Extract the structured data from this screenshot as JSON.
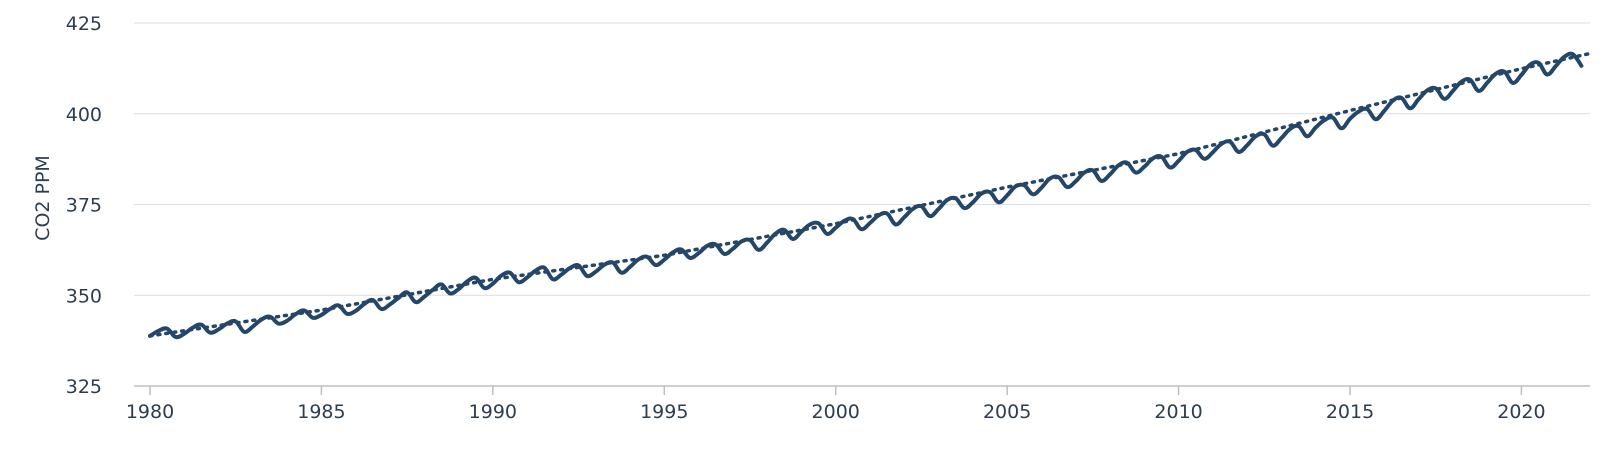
{
  "chart_data": {
    "type": "line",
    "title": "",
    "xlabel": "",
    "ylabel": "CO2 PPM",
    "xlim": [
      1980,
      2022
    ],
    "ylim": [
      325,
      425
    ],
    "x_ticks": [
      "1980",
      "1985",
      "1990",
      "1995",
      "2000",
      "2005",
      "2010",
      "2015",
      "2020"
    ],
    "y_ticks": [
      "325",
      "350",
      "375",
      "400",
      "425"
    ],
    "grid": "horizontal",
    "line_color": "#244669",
    "series": [
      {
        "style": "solid",
        "x": [
          1980.0,
          1980.25,
          1980.5,
          1980.75,
          1981.0,
          1981.25,
          1981.5,
          1981.75,
          1982.0,
          1982.25,
          1982.5,
          1982.75,
          1983.0,
          1983.25,
          1983.5,
          1983.75,
          1984.0,
          1984.25,
          1984.5,
          1984.75,
          1985.0,
          1985.25,
          1985.5,
          1985.75,
          1986.0,
          1986.25,
          1986.5,
          1986.75,
          1987.0,
          1987.25,
          1987.5,
          1987.75,
          1988.0,
          1988.25,
          1988.5,
          1988.75,
          1989.0,
          1989.25,
          1989.5,
          1989.75,
          1990.0,
          1990.25,
          1990.5,
          1990.75,
          1991.0,
          1991.25,
          1991.5,
          1991.75,
          1992.0,
          1992.25,
          1992.5,
          1992.75,
          1993.0,
          1993.25,
          1993.5,
          1993.75,
          1994.0,
          1994.25,
          1994.5,
          1994.75,
          1995.0,
          1995.25,
          1995.5,
          1995.75,
          1996.0,
          1996.25,
          1996.5,
          1996.75,
          1997.0,
          1997.25,
          1997.5,
          1997.75,
          1998.0,
          1998.25,
          1998.5,
          1998.75,
          1999.0,
          1999.25,
          1999.5,
          1999.75,
          2000.0,
          2000.25,
          2000.5,
          2000.75,
          2001.0,
          2001.25,
          2001.5,
          2001.75,
          2002.0,
          2002.25,
          2002.5,
          2002.75,
          2003.0,
          2003.25,
          2003.5,
          2003.75,
          2004.0,
          2004.25,
          2004.5,
          2004.75,
          2005.0,
          2005.25,
          2005.5,
          2005.75,
          2006.0,
          2006.25,
          2006.5,
          2006.75,
          2007.0,
          2007.25,
          2007.5,
          2007.75,
          2008.0,
          2008.25,
          2008.5,
          2008.75,
          2009.0,
          2009.25,
          2009.5,
          2009.75,
          2010.0,
          2010.25,
          2010.5,
          2010.75,
          2011.0,
          2011.25,
          2011.5,
          2011.75,
          2012.0,
          2012.25,
          2012.5,
          2012.75,
          2013.0,
          2013.25,
          2013.5,
          2013.75,
          2014.0,
          2014.25,
          2014.5,
          2014.75,
          2015.0,
          2015.25,
          2015.5,
          2015.75,
          2016.0,
          2016.25,
          2016.5,
          2016.75,
          2017.0,
          2017.25,
          2017.5,
          2017.75,
          2018.0,
          2018.25,
          2018.5,
          2018.75,
          2019.0,
          2019.25,
          2019.5,
          2019.75,
          2020.0,
          2020.25,
          2020.5,
          2020.75,
          2021.0,
          2021.25,
          2021.5,
          2021.75
        ],
        "y": [
          338.8,
          340.2,
          340.8,
          338.5,
          339.4,
          341.1,
          341.9,
          339.7,
          340.6,
          342.2,
          342.8,
          339.9,
          341.4,
          343.3,
          344.1,
          342.2,
          343.0,
          344.8,
          345.8,
          343.8,
          344.6,
          346.2,
          347.2,
          344.9,
          345.7,
          347.6,
          348.7,
          346.2,
          347.5,
          349.3,
          350.8,
          348.1,
          349.6,
          351.5,
          353.0,
          350.5,
          351.7,
          353.8,
          354.8,
          352.0,
          353.2,
          355.4,
          356.2,
          353.6,
          354.9,
          356.8,
          357.6,
          354.4,
          355.7,
          357.5,
          358.2,
          355.3,
          356.5,
          358.4,
          359.0,
          356.2,
          357.8,
          359.9,
          360.6,
          358.3,
          359.8,
          361.8,
          362.6,
          360.3,
          361.6,
          363.6,
          364.0,
          361.4,
          362.8,
          364.8,
          365.2,
          362.5,
          364.5,
          367.0,
          368.0,
          365.5,
          367.5,
          369.5,
          369.8,
          366.9,
          368.6,
          370.5,
          371.0,
          368.2,
          369.9,
          372.0,
          372.5,
          369.5,
          371.5,
          373.8,
          374.5,
          371.8,
          373.8,
          376.2,
          376.7,
          374.0,
          375.6,
          378.0,
          378.4,
          375.6,
          377.5,
          380.0,
          380.3,
          377.8,
          379.6,
          382.2,
          382.5,
          379.8,
          381.4,
          383.8,
          384.4,
          381.5,
          383.3,
          385.8,
          386.5,
          383.8,
          385.4,
          387.7,
          388.2,
          385.2,
          387.0,
          389.5,
          390.0,
          387.6,
          389.4,
          391.7,
          392.3,
          389.5,
          391.3,
          393.8,
          394.3,
          391.2,
          393.3,
          395.8,
          396.6,
          393.8,
          396.2,
          398.2,
          398.9,
          396.0,
          398.6,
          400.6,
          401.3,
          398.5,
          400.8,
          403.6,
          404.4,
          401.5,
          404.0,
          406.4,
          407.0,
          404.1,
          406.3,
          408.8,
          409.4,
          406.3,
          408.5,
          411.0,
          411.6,
          408.5,
          410.7,
          413.5,
          414.0,
          410.8,
          413.1,
          415.7,
          416.4,
          413.2
        ]
      },
      {
        "style": "dotted",
        "x": [
          1980,
          1985,
          1990,
          1995,
          2000,
          2005,
          2010,
          2015,
          2020,
          2022
        ],
        "y": [
          338.8,
          345.9,
          354.4,
          361.0,
          369.7,
          379.8,
          389.0,
          400.9,
          412.4,
          416.6
        ]
      }
    ]
  }
}
